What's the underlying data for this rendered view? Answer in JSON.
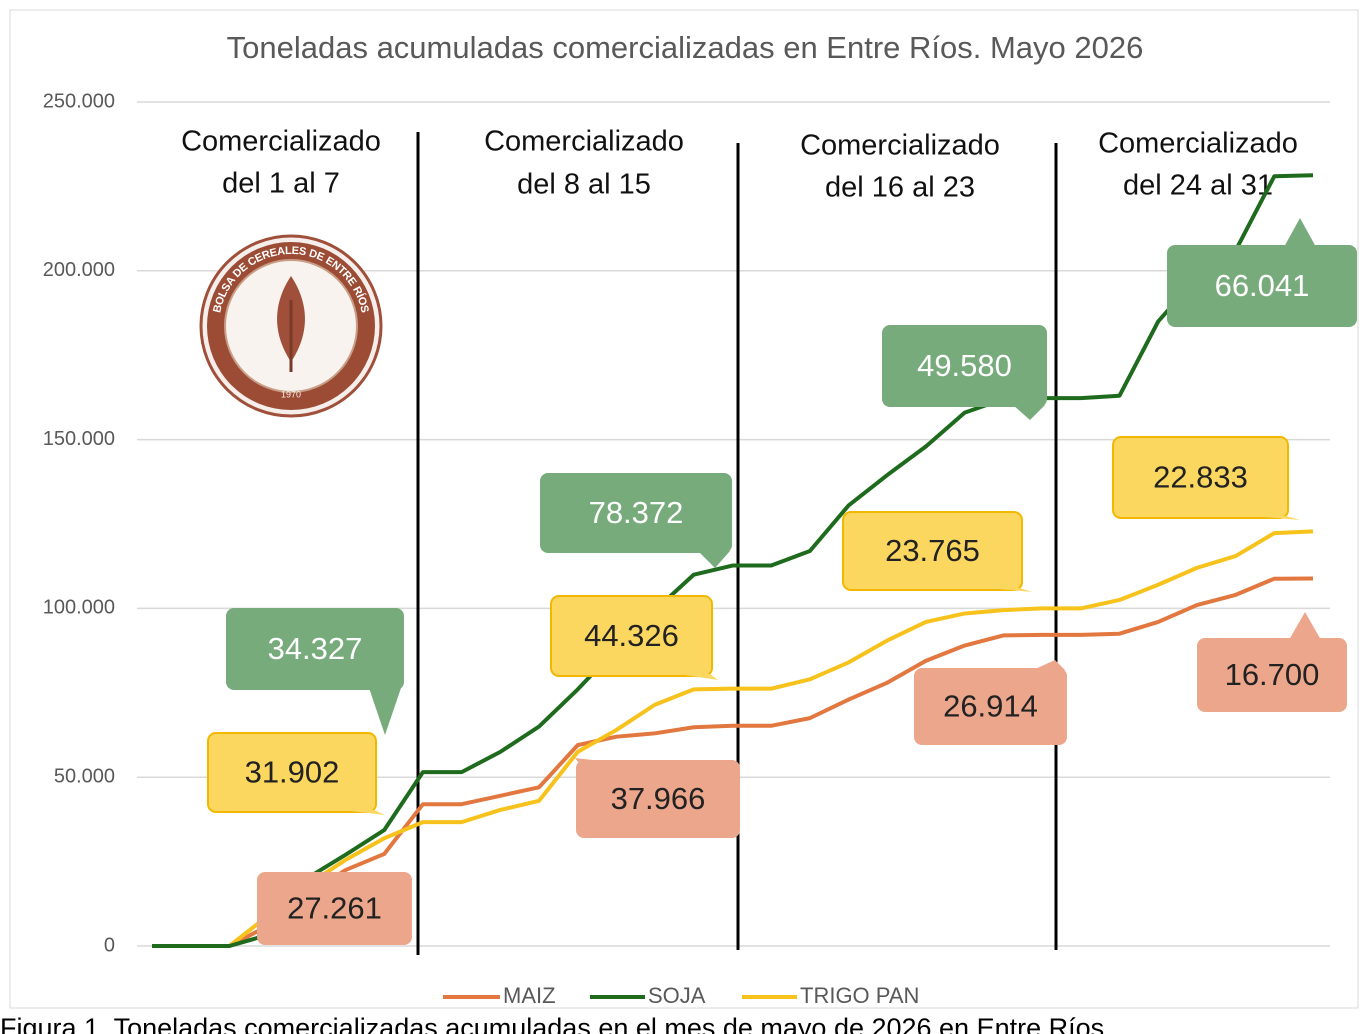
{
  "chart_data": {
    "type": "line",
    "title": "Toneladas acumuladas comercializadas en Entre Ríos. Mayo 2026",
    "categories": [
      null,
      null,
      null,
      null,
      null,
      null,
      null,
      null,
      null,
      null,
      null,
      null,
      null,
      null,
      null,
      null,
      null,
      null,
      null,
      null,
      null,
      null,
      null,
      null,
      null,
      null,
      null,
      null,
      null,
      null,
      null
    ],
    "series": [
      {
        "name": "MAIZ",
        "color": "#e2773f",
        "values": [
          0,
          0,
          0,
          6000,
          15000,
          22500,
          27261,
          42000,
          42000,
          44500,
          47000,
          59500,
          62000,
          63000,
          64800,
          65227,
          65227,
          67500,
          73000,
          78000,
          84500,
          89000,
          92000,
          92141,
          92141,
          92500,
          96000,
          101000,
          104000,
          108800,
          108841
        ]
      },
      {
        "name": "SOJA",
        "color": "#1e6b1e",
        "values": [
          0,
          0,
          0,
          3300,
          20000,
          27000,
          34327,
          51500,
          51500,
          57500,
          65000,
          76000,
          88000,
          99500,
          110000,
          112699,
          112699,
          117000,
          130500,
          139500,
          148000,
          158000,
          162000,
          162279,
          162279,
          163000,
          185000,
          198000,
          206000,
          228000,
          228320
        ]
      },
      {
        "name": "TRIGO PAN",
        "color": "#f6c21b",
        "values": [
          0,
          0,
          0,
          9000,
          18000,
          25500,
          31902,
          36700,
          36700,
          40300,
          43000,
          57500,
          64000,
          71500,
          76000,
          76228,
          76228,
          79000,
          84000,
          90500,
          96000,
          98500,
          99500,
          99993,
          99993,
          102500,
          107000,
          112000,
          115500,
          122300,
          122826
        ]
      }
    ],
    "ylim": [
      0,
      250000
    ],
    "yticks": [
      0,
      {
        "value": 50000,
        "label": "50.000"
      },
      {
        "value": 100000,
        "label": "100.000"
      },
      {
        "value": 150000,
        "label": "150.000"
      },
      {
        "value": 200000,
        "label": "200.000"
      },
      {
        "value": 250000,
        "label": "250.000"
      }
    ],
    "grid": true,
    "legend": "bottom",
    "sections": [
      [
        "Comercializado",
        "del 1 al 7"
      ],
      [
        "Comercializado",
        "del 8 al 15"
      ],
      [
        "Comercializado",
        "del 16 al 23"
      ],
      [
        "Comercializado",
        "del 24 al 31"
      ]
    ],
    "annotations": [
      {
        "text": "34.327",
        "color": "#77ab7c",
        "text_color": "#ffffff"
      },
      {
        "text": "31.902",
        "color": "#fbd760",
        "text_color": "#222222"
      },
      {
        "text": "27.261",
        "color": "#eca68b",
        "text_color": "#222222"
      },
      {
        "text": "78.372",
        "color": "#77ab7c",
        "text_color": "#ffffff"
      },
      {
        "text": "44.326",
        "color": "#fbd760",
        "text_color": "#222222"
      },
      {
        "text": "37.966",
        "color": "#eca68b",
        "text_color": "#222222"
      },
      {
        "text": "49.580",
        "color": "#77ab7c",
        "text_color": "#ffffff"
      },
      {
        "text": "23.765",
        "color": "#fbd760",
        "text_color": "#222222"
      },
      {
        "text": "26.914",
        "color": "#eca68b",
        "text_color": "#222222"
      },
      {
        "text": "66.041",
        "color": "#77ab7c",
        "text_color": "#ffffff"
      },
      {
        "text": "22.833",
        "color": "#fbd760",
        "text_color": "#222222"
      },
      {
        "text": "16.700",
        "color": "#eca68b",
        "text_color": "#222222"
      }
    ],
    "logo": {
      "text": "BOLSA DE CEREALES DE ENTRE RÍOS",
      "year": "1970"
    }
  },
  "caption": "Figura 1. Toneladas comercializadas acumuladas en el mes de mayo de 2026 en Entre Ríos"
}
